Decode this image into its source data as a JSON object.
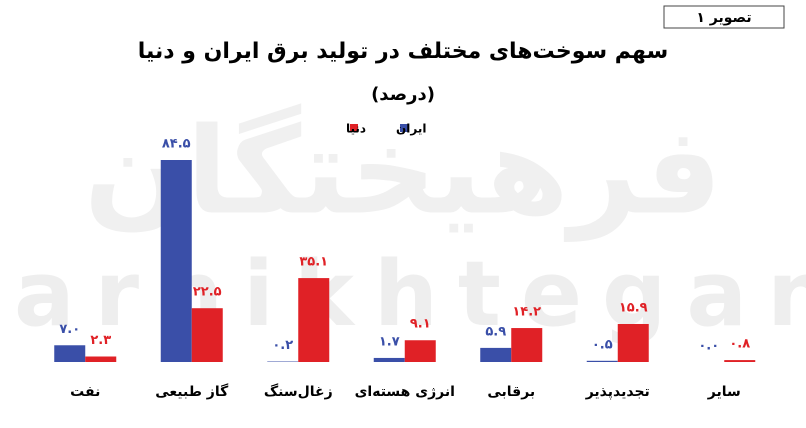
{
  "chart_data": {
    "type": "bar",
    "tag": "تصویر ۱",
    "title": "سهم سوخت‌های مختلف در تولید برق ایران و دنیا",
    "subtitle": "(درصد)",
    "watermark": [
      "فرهیختگان",
      "farhikhtegan"
    ],
    "categories": [
      "نفت",
      "گاز طبیعی",
      "زغال‌سنگ",
      "انرژی هسته‌ای",
      "برقابی",
      "تجدیدپذیر",
      "سایر"
    ],
    "series": [
      {
        "name": "ایران",
        "color": "#3a4fa8",
        "values": [
          7.0,
          84.5,
          0.2,
          1.7,
          5.9,
          0.5,
          0.0
        ],
        "value_labels": [
          "۷.۰",
          "۸۴.۵",
          "۰.۲",
          "۱.۷",
          "۵.۹",
          "۰.۵",
          "۰.۰"
        ]
      },
      {
        "name": "دنیا",
        "color": "#e02126",
        "values": [
          2.3,
          22.5,
          35.1,
          9.1,
          14.2,
          15.9,
          0.8
        ],
        "value_labels": [
          "۲.۳",
          "۲۲.۵",
          "۳۵.۱",
          "۹.۱",
          "۱۴.۲",
          "۱۵.۹",
          "۰.۸"
        ]
      }
    ]
  }
}
